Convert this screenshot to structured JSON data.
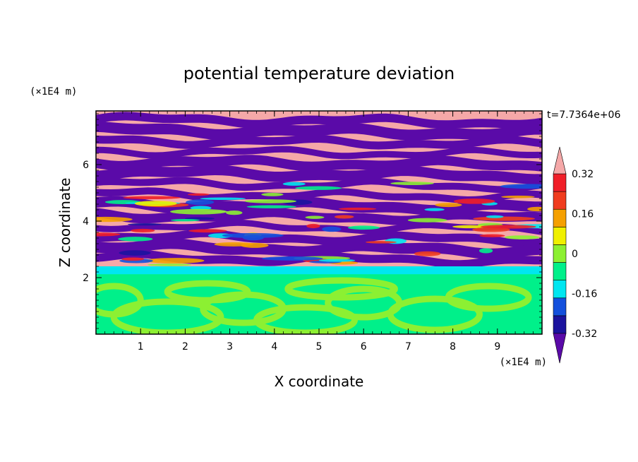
{
  "chart_data": {
    "type": "heatmap",
    "title": "potential temperature deviation",
    "xlabel": "X coordinate",
    "ylabel": "Z coordinate",
    "x_unit": "(×1E4 m)",
    "y_unit": "(×1E4 m)",
    "time_label": "t=7.7364e+06",
    "xlim": [
      0,
      10
    ],
    "ylim": [
      0,
      7.9
    ],
    "x_ticks": [
      1,
      2,
      3,
      4,
      5,
      6,
      7,
      8,
      9
    ],
    "y_ticks": [
      2,
      4,
      6
    ],
    "colorbar": {
      "levels": [
        -0.4,
        -0.32,
        -0.24,
        -0.16,
        -0.08,
        0,
        0.08,
        0.16,
        0.24,
        0.32,
        0.4
      ],
      "labels": [
        "0.32",
        "0.16",
        "0",
        "-0.16",
        "-0.32"
      ],
      "label_values": [
        0.32,
        0.16,
        0,
        -0.16,
        -0.32
      ],
      "colors": [
        "#5a0aa8",
        "#1b139e",
        "#1450dc",
        "#00e6f0",
        "#00f08a",
        "#8cf032",
        "#f0f000",
        "#f5a000",
        "#f03c1e",
        "#f01e28",
        "#f5a8a8"
      ],
      "extend": "both"
    },
    "fields": {
      "lower_layer_z": [
        0,
        2.0
      ],
      "transition_band_z": [
        2.0,
        2.4
      ],
      "stratified_layer_z": [
        2.4,
        7.9
      ],
      "stripe_count": 14
    }
  }
}
